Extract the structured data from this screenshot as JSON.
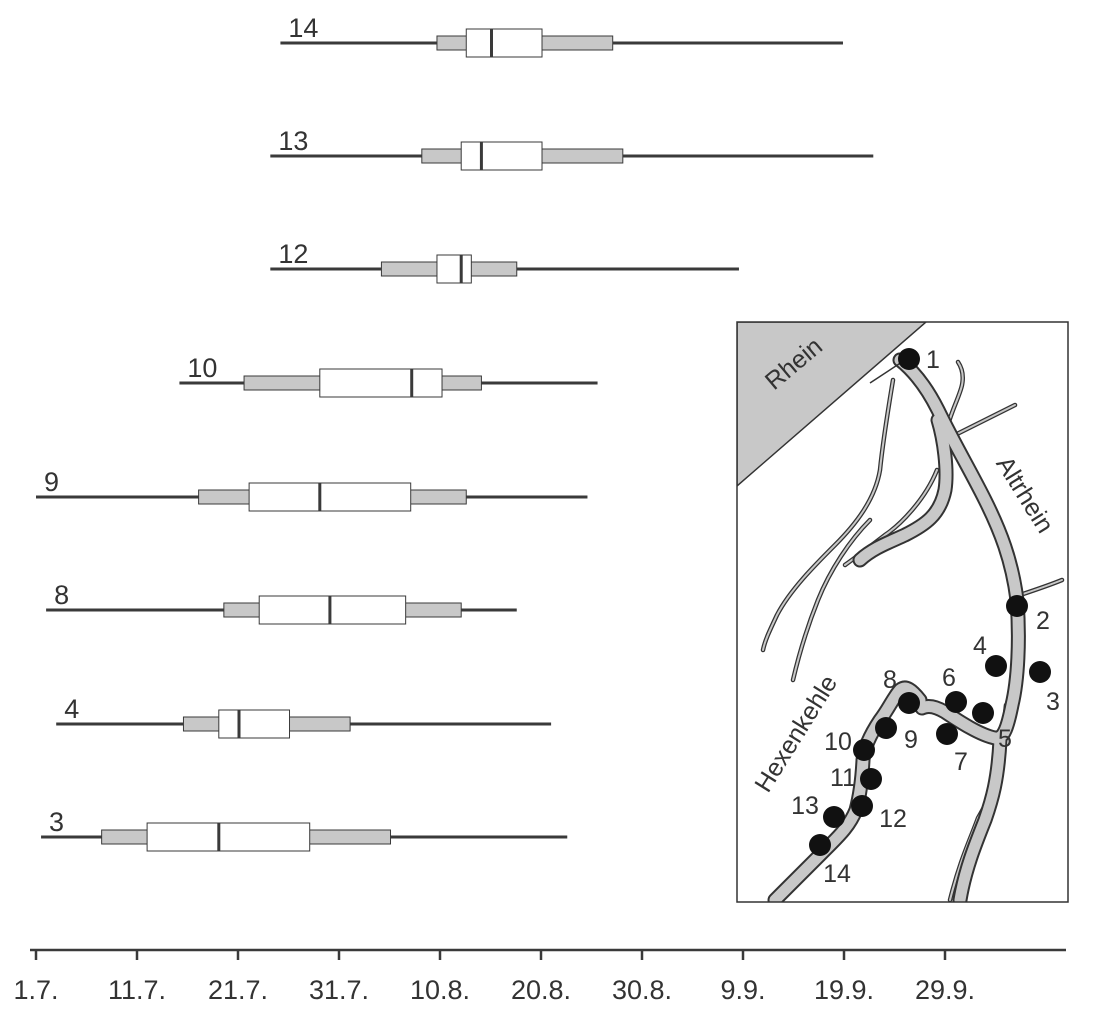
{
  "chart_data": {
    "type": "box",
    "axis": {
      "unit": "date",
      "tick_labels": [
        "1.7.",
        "11.7.",
        "21.7.",
        "31.7.",
        "10.8.",
        "20.8.",
        "30.8.",
        "9.9.",
        "19.9.",
        "29.9."
      ],
      "tick_days": [
        0,
        10,
        20,
        30,
        40,
        50,
        60,
        70,
        80,
        90
      ],
      "range_days": [
        0,
        90.5
      ]
    },
    "rows": [
      {
        "label": "14",
        "whisker_min": 24.2,
        "p10": 39.7,
        "q1": 42.6,
        "median": 45.1,
        "q3": 50.1,
        "p90": 57.1,
        "whisker_max": 79.9
      },
      {
        "label": "13",
        "whisker_min": 23.2,
        "p10": 38.2,
        "q1": 42.1,
        "median": 44.1,
        "q3": 50.1,
        "p90": 58.1,
        "whisker_max": 82.9
      },
      {
        "label": "12",
        "whisker_min": 23.2,
        "p10": 34.2,
        "q1": 39.7,
        "median": 42.1,
        "q3": 43.1,
        "p90": 47.6,
        "whisker_max": 69.6
      },
      {
        "label": "10",
        "whisker_min": 14.2,
        "p10": 20.6,
        "q1": 28.1,
        "median": 37.2,
        "q3": 40.2,
        "p90": 44.1,
        "whisker_max": 55.6
      },
      {
        "label": "9",
        "whisker_min": 0.0,
        "p10": 16.1,
        "q1": 21.1,
        "median": 28.1,
        "q3": 37.1,
        "p90": 42.6,
        "whisker_max": 54.6
      },
      {
        "label": "8",
        "whisker_min": 1.0,
        "p10": 18.6,
        "q1": 22.1,
        "median": 29.1,
        "q3": 36.6,
        "p90": 42.1,
        "whisker_max": 47.6
      },
      {
        "label": "4",
        "whisker_min": 2.0,
        "p10": 14.6,
        "q1": 18.1,
        "median": 20.1,
        "q3": 25.1,
        "p90": 31.1,
        "whisker_max": 51.0
      },
      {
        "label": "3",
        "whisker_min": 0.5,
        "p10": 6.5,
        "q1": 11.0,
        "median": 18.1,
        "q3": 27.1,
        "p90": 35.1,
        "whisker_max": 52.6
      }
    ],
    "colors": {
      "line": "#3a3a3a",
      "outer_box": "#c8c8c8",
      "inner_box": "#ffffff",
      "water": "#c8c8c8"
    }
  },
  "map": {
    "river_label": "Rhein",
    "altrhein_label": "Altrhein",
    "hexenkehle_label": "Hexenkehle",
    "sites": [
      {
        "label": "1"
      },
      {
        "label": "2"
      },
      {
        "label": "3"
      },
      {
        "label": "4"
      },
      {
        "label": "5"
      },
      {
        "label": "6"
      },
      {
        "label": "7"
      },
      {
        "label": "8"
      },
      {
        "label": "9"
      },
      {
        "label": "10"
      },
      {
        "label": "11"
      },
      {
        "label": "12"
      },
      {
        "label": "13"
      },
      {
        "label": "14"
      }
    ]
  }
}
